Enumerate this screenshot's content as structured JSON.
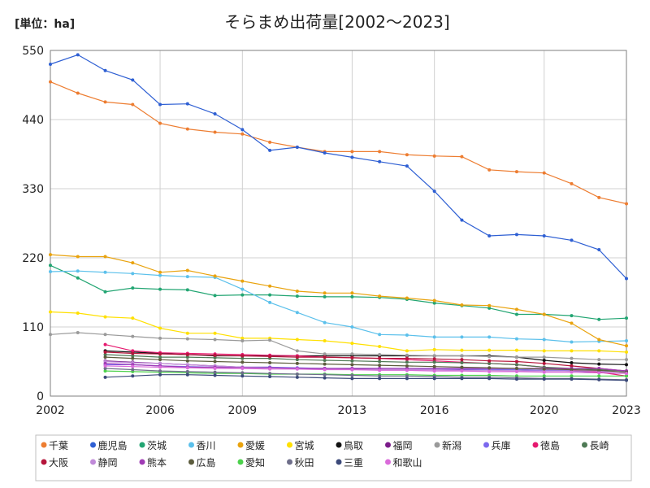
{
  "chart_data": {
    "type": "line",
    "title": "そらまめ出荷量[2002～2023]",
    "unit_label": "[単位：ha]",
    "x_ticks": [
      "2002",
      "2006",
      "2009",
      "2013",
      "2016",
      "2020",
      "2023"
    ],
    "y_ticks": [
      "0",
      "110",
      "220",
      "330",
      "440",
      "550"
    ],
    "xlim": [
      2002,
      2023
    ],
    "ylim": [
      0,
      550
    ],
    "grid": true,
    "legend_position": "bottom",
    "series": [
      {
        "name": "千葉",
        "color": "#ED7D31",
        "x": [
          2002,
          2003,
          2004,
          2005,
          2006,
          2007,
          2008,
          2009,
          2010,
          2011,
          2012,
          2013,
          2014,
          2015,
          2016,
          2017,
          2018,
          2019,
          2020,
          2021,
          2022,
          2023
        ],
        "y": [
          500,
          482,
          468,
          464,
          434,
          425,
          420,
          417,
          404,
          396,
          389,
          389,
          389,
          384,
          382,
          381,
          360,
          357,
          355,
          338,
          316,
          306
        ]
      },
      {
        "name": "鹿児島",
        "color": "#2E5FD3",
        "x": [
          2002,
          2003,
          2004,
          2005,
          2006,
          2007,
          2008,
          2009,
          2010,
          2011,
          2012,
          2013,
          2014,
          2015,
          2016,
          2017,
          2018,
          2019,
          2020,
          2021,
          2022,
          2023
        ],
        "y": [
          528,
          543,
          518,
          503,
          464,
          465,
          449,
          424,
          391,
          396,
          387,
          380,
          373,
          366,
          326,
          280,
          255,
          257,
          255,
          248,
          233,
          187
        ]
      },
      {
        "name": "茨城",
        "color": "#22A572",
        "x": [
          2002,
          2003,
          2004,
          2005,
          2006,
          2007,
          2008,
          2009,
          2010,
          2011,
          2012,
          2013,
          2014,
          2015,
          2016,
          2017,
          2018,
          2019,
          2020,
          2021,
          2022,
          2023
        ],
        "y": [
          208,
          188,
          166,
          172,
          170,
          169,
          160,
          161,
          161,
          159,
          158,
          158,
          157,
          154,
          148,
          144,
          140,
          130,
          130,
          128,
          122,
          124
        ]
      },
      {
        "name": "香川",
        "color": "#5BC0EB",
        "x": [
          2002,
          2003,
          2004,
          2005,
          2006,
          2007,
          2008,
          2009,
          2010,
          2011,
          2012,
          2013,
          2014,
          2015,
          2016,
          2017,
          2018,
          2019,
          2020,
          2021,
          2022,
          2023
        ],
        "y": [
          198,
          199,
          197,
          195,
          192,
          190,
          189,
          170,
          149,
          133,
          117,
          110,
          98,
          97,
          94,
          94,
          94,
          91,
          90,
          86,
          87,
          88
        ]
      },
      {
        "name": "愛媛",
        "color": "#E9A30E",
        "x": [
          2002,
          2003,
          2004,
          2005,
          2006,
          2007,
          2008,
          2009,
          2010,
          2011,
          2012,
          2013,
          2014,
          2015,
          2016,
          2017,
          2018,
          2019,
          2020,
          2021,
          2022,
          2023
        ],
        "y": [
          225,
          222,
          222,
          212,
          197,
          200,
          191,
          183,
          175,
          167,
          164,
          164,
          159,
          156,
          152,
          145,
          144,
          138,
          130,
          116,
          90,
          80
        ]
      },
      {
        "name": "宮城",
        "color": "#FFE000",
        "x": [
          2002,
          2003,
          2004,
          2005,
          2006,
          2007,
          2008,
          2009,
          2010,
          2011,
          2012,
          2013,
          2014,
          2015,
          2016,
          2017,
          2018,
          2019,
          2020,
          2021,
          2022,
          2023
        ],
        "y": [
          134,
          132,
          126,
          124,
          108,
          100,
          100,
          92,
          92,
          90,
          88,
          84,
          79,
          72,
          74,
          73,
          73,
          73,
          72,
          72,
          72,
          70
        ]
      },
      {
        "name": "鳥取",
        "color": "#111111",
        "x": [
          2004,
          2005,
          2006,
          2007,
          2008,
          2009,
          2010,
          2011,
          2012,
          2013,
          2014,
          2015,
          2016,
          2017,
          2018,
          2019,
          2020,
          2021,
          2022,
          2023
        ],
        "y": [
          72,
          70,
          68,
          66,
          64,
          64,
          64,
          64,
          64,
          64,
          64,
          64,
          64,
          64,
          64,
          62,
          57,
          53,
          51,
          50
        ]
      },
      {
        "name": "福岡",
        "color": "#7B1C8A",
        "x": [
          2004,
          2005,
          2006,
          2007,
          2008,
          2009,
          2010,
          2011,
          2012,
          2013,
          2014,
          2015,
          2016,
          2017,
          2018,
          2019,
          2020,
          2021,
          2022,
          2023
        ],
        "y": [
          56,
          54,
          52,
          50,
          48,
          46,
          46,
          44,
          44,
          43,
          42,
          42,
          42,
          42,
          42,
          42,
          41,
          40,
          38,
          36
        ]
      },
      {
        "name": "新潟",
        "color": "#9A9A9A",
        "x": [
          2002,
          2003,
          2004,
          2005,
          2006,
          2007,
          2008,
          2009,
          2010,
          2011,
          2012,
          2013,
          2014,
          2015,
          2016,
          2017,
          2018,
          2019,
          2020,
          2021,
          2022,
          2023
        ],
        "y": [
          98,
          101,
          98,
          95,
          92,
          91,
          90,
          88,
          89,
          72,
          67,
          67,
          66,
          65,
          64,
          64,
          63,
          62,
          62,
          60,
          58,
          58
        ]
      },
      {
        "name": "兵庫",
        "color": "#7B68EE",
        "x": [
          2004,
          2005,
          2006,
          2007,
          2008,
          2009,
          2010,
          2011,
          2012,
          2013,
          2014,
          2015,
          2016,
          2017,
          2018,
          2019,
          2020,
          2021,
          2022,
          2023
        ],
        "y": [
          50,
          50,
          48,
          47,
          46,
          46,
          46,
          45,
          44,
          44,
          44,
          44,
          43,
          43,
          42,
          42,
          41,
          41,
          40,
          40
        ]
      },
      {
        "name": "徳島",
        "color": "#E6196F",
        "x": [
          2004,
          2005,
          2006,
          2007,
          2008,
          2009,
          2010,
          2011,
          2012,
          2013,
          2014,
          2015,
          2016,
          2017,
          2018,
          2019,
          2020,
          2021,
          2022,
          2023
        ],
        "y": [
          82,
          72,
          69,
          68,
          67,
          66,
          65,
          64,
          62,
          61,
          60,
          58,
          56,
          54,
          52,
          50,
          46,
          42,
          38,
          32
        ]
      },
      {
        "name": "長崎",
        "color": "#4E7A55",
        "x": [
          2004,
          2005,
          2006,
          2007,
          2008,
          2009,
          2010,
          2011,
          2012,
          2013,
          2014,
          2015,
          2016,
          2017,
          2018,
          2019,
          2020,
          2021,
          2022,
          2023
        ],
        "y": [
          66,
          64,
          62,
          62,
          61,
          60,
          60,
          58,
          57,
          56,
          55,
          54,
          54,
          53,
          52,
          50,
          46,
          44,
          42,
          40
        ]
      },
      {
        "name": "大阪",
        "color": "#B5153B",
        "x": [
          2004,
          2005,
          2006,
          2007,
          2008,
          2009,
          2010,
          2011,
          2012,
          2013,
          2014,
          2015,
          2016,
          2017,
          2018,
          2019,
          2020,
          2021,
          2022,
          2023
        ],
        "y": [
          70,
          68,
          67,
          66,
          65,
          64,
          63,
          62,
          62,
          61,
          60,
          60,
          59,
          58,
          56,
          55,
          52,
          48,
          44,
          40
        ]
      },
      {
        "name": "静岡",
        "color": "#C08AD9",
        "x": [
          2004,
          2005,
          2006,
          2007,
          2008,
          2009,
          2010,
          2011,
          2012,
          2013,
          2014,
          2015,
          2016,
          2017,
          2018,
          2019,
          2020,
          2021,
          2022,
          2023
        ],
        "y": [
          55,
          53,
          52,
          50,
          48,
          46,
          45,
          44,
          43,
          42,
          42,
          42,
          42,
          41,
          41,
          40,
          40,
          40,
          40,
          39
        ]
      },
      {
        "name": "熊本",
        "color": "#A03CB5",
        "x": [
          2004,
          2005,
          2006,
          2007,
          2008,
          2009,
          2010,
          2011,
          2012,
          2013,
          2014,
          2015,
          2016,
          2017,
          2018,
          2019,
          2020,
          2021,
          2022,
          2023
        ],
        "y": [
          52,
          50,
          48,
          46,
          46,
          45,
          45,
          44,
          44,
          44,
          44,
          44,
          44,
          44,
          44,
          44,
          44,
          44,
          44,
          40
        ]
      },
      {
        "name": "広島",
        "color": "#5C5C3D",
        "x": [
          2004,
          2005,
          2006,
          2007,
          2008,
          2009,
          2010,
          2011,
          2012,
          2013,
          2014,
          2015,
          2016,
          2017,
          2018,
          2019,
          2020,
          2021,
          2022,
          2023
        ],
        "y": [
          62,
          60,
          58,
          56,
          55,
          54,
          53,
          52,
          51,
          50,
          49,
          48,
          47,
          46,
          45,
          44,
          43,
          42,
          41,
          38
        ]
      },
      {
        "name": "愛知",
        "color": "#4CD14C",
        "x": [
          2004,
          2005,
          2006,
          2007,
          2008,
          2009,
          2010,
          2011,
          2012,
          2013,
          2014,
          2015,
          2016,
          2017,
          2018,
          2019,
          2020,
          2021,
          2022,
          2023
        ],
        "y": [
          40,
          39,
          38,
          37,
          36,
          36,
          35,
          35,
          35,
          34,
          34,
          34,
          33,
          33,
          33,
          32,
          32,
          32,
          32,
          32
        ]
      },
      {
        "name": "秋田",
        "color": "#6E6E8A",
        "x": [
          2004,
          2005,
          2006,
          2007,
          2008,
          2009,
          2010,
          2011,
          2012,
          2013,
          2014,
          2015,
          2016,
          2017,
          2018,
          2019,
          2020,
          2021,
          2022,
          2023
        ],
        "y": [
          44,
          42,
          40,
          39,
          38,
          37,
          36,
          35,
          34,
          33,
          32,
          32,
          31,
          30,
          30,
          29,
          28,
          28,
          27,
          26
        ]
      },
      {
        "name": "三重",
        "color": "#3C4A7A",
        "x": [
          2004,
          2005,
          2006,
          2007,
          2008,
          2009,
          2010,
          2011,
          2012,
          2013,
          2014,
          2015,
          2016,
          2017,
          2018,
          2019,
          2020,
          2021,
          2022,
          2023
        ],
        "y": [
          30,
          32,
          34,
          34,
          33,
          32,
          31,
          30,
          29,
          28,
          28,
          28,
          28,
          28,
          28,
          27,
          27,
          27,
          26,
          25
        ]
      },
      {
        "name": "和歌山",
        "color": "#DA6BDA",
        "x": [
          2004,
          2005,
          2006,
          2007,
          2008,
          2009,
          2010,
          2011,
          2012,
          2013,
          2014,
          2015,
          2016,
          2017,
          2018,
          2019,
          2020,
          2021,
          2022,
          2023
        ],
        "y": [
          48,
          47,
          46,
          45,
          44,
          44,
          43,
          43,
          42,
          42,
          41,
          41,
          40,
          40,
          39,
          39,
          38,
          38,
          37,
          36
        ]
      }
    ]
  }
}
